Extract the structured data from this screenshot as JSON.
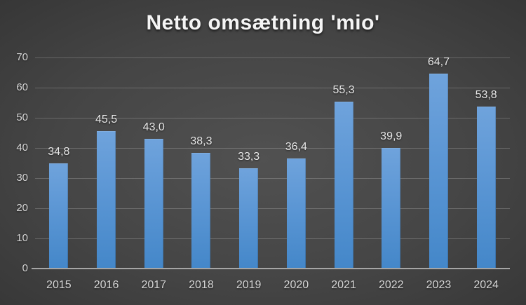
{
  "chart_data": {
    "type": "bar",
    "title": "Netto omsætning 'mio'",
    "categories": [
      "2015",
      "2016",
      "2017",
      "2018",
      "2019",
      "2020",
      "2021",
      "2022",
      "2023",
      "2024"
    ],
    "values": [
      34.8,
      45.5,
      43.0,
      38.3,
      33.3,
      36.4,
      55.3,
      39.9,
      64.7,
      53.8
    ],
    "value_labels": [
      "34,8",
      "45,5",
      "43,0",
      "38,3",
      "33,3",
      "36,4",
      "55,3",
      "39,9",
      "64,7",
      "53,8"
    ],
    "xlabel": "",
    "ylabel": "",
    "ylim": [
      0,
      70
    ],
    "yticks": [
      0,
      10,
      20,
      30,
      40,
      50,
      60,
      70
    ],
    "grid": true,
    "legend": "none",
    "data_labels": "above-bars"
  },
  "colors": {
    "background_center": "#515151",
    "background_edge": "#1d1d1d",
    "bar_gradient_top": "#6fa3dc",
    "bar_gradient_bottom": "#4487c9",
    "gridline": "rgba(255,255,255,0.20)",
    "axis_line": "#a6a6a6",
    "tick_text": "#d6d6d6",
    "value_text": "#e8e8e8",
    "title_text": "#f5f5f5"
  }
}
